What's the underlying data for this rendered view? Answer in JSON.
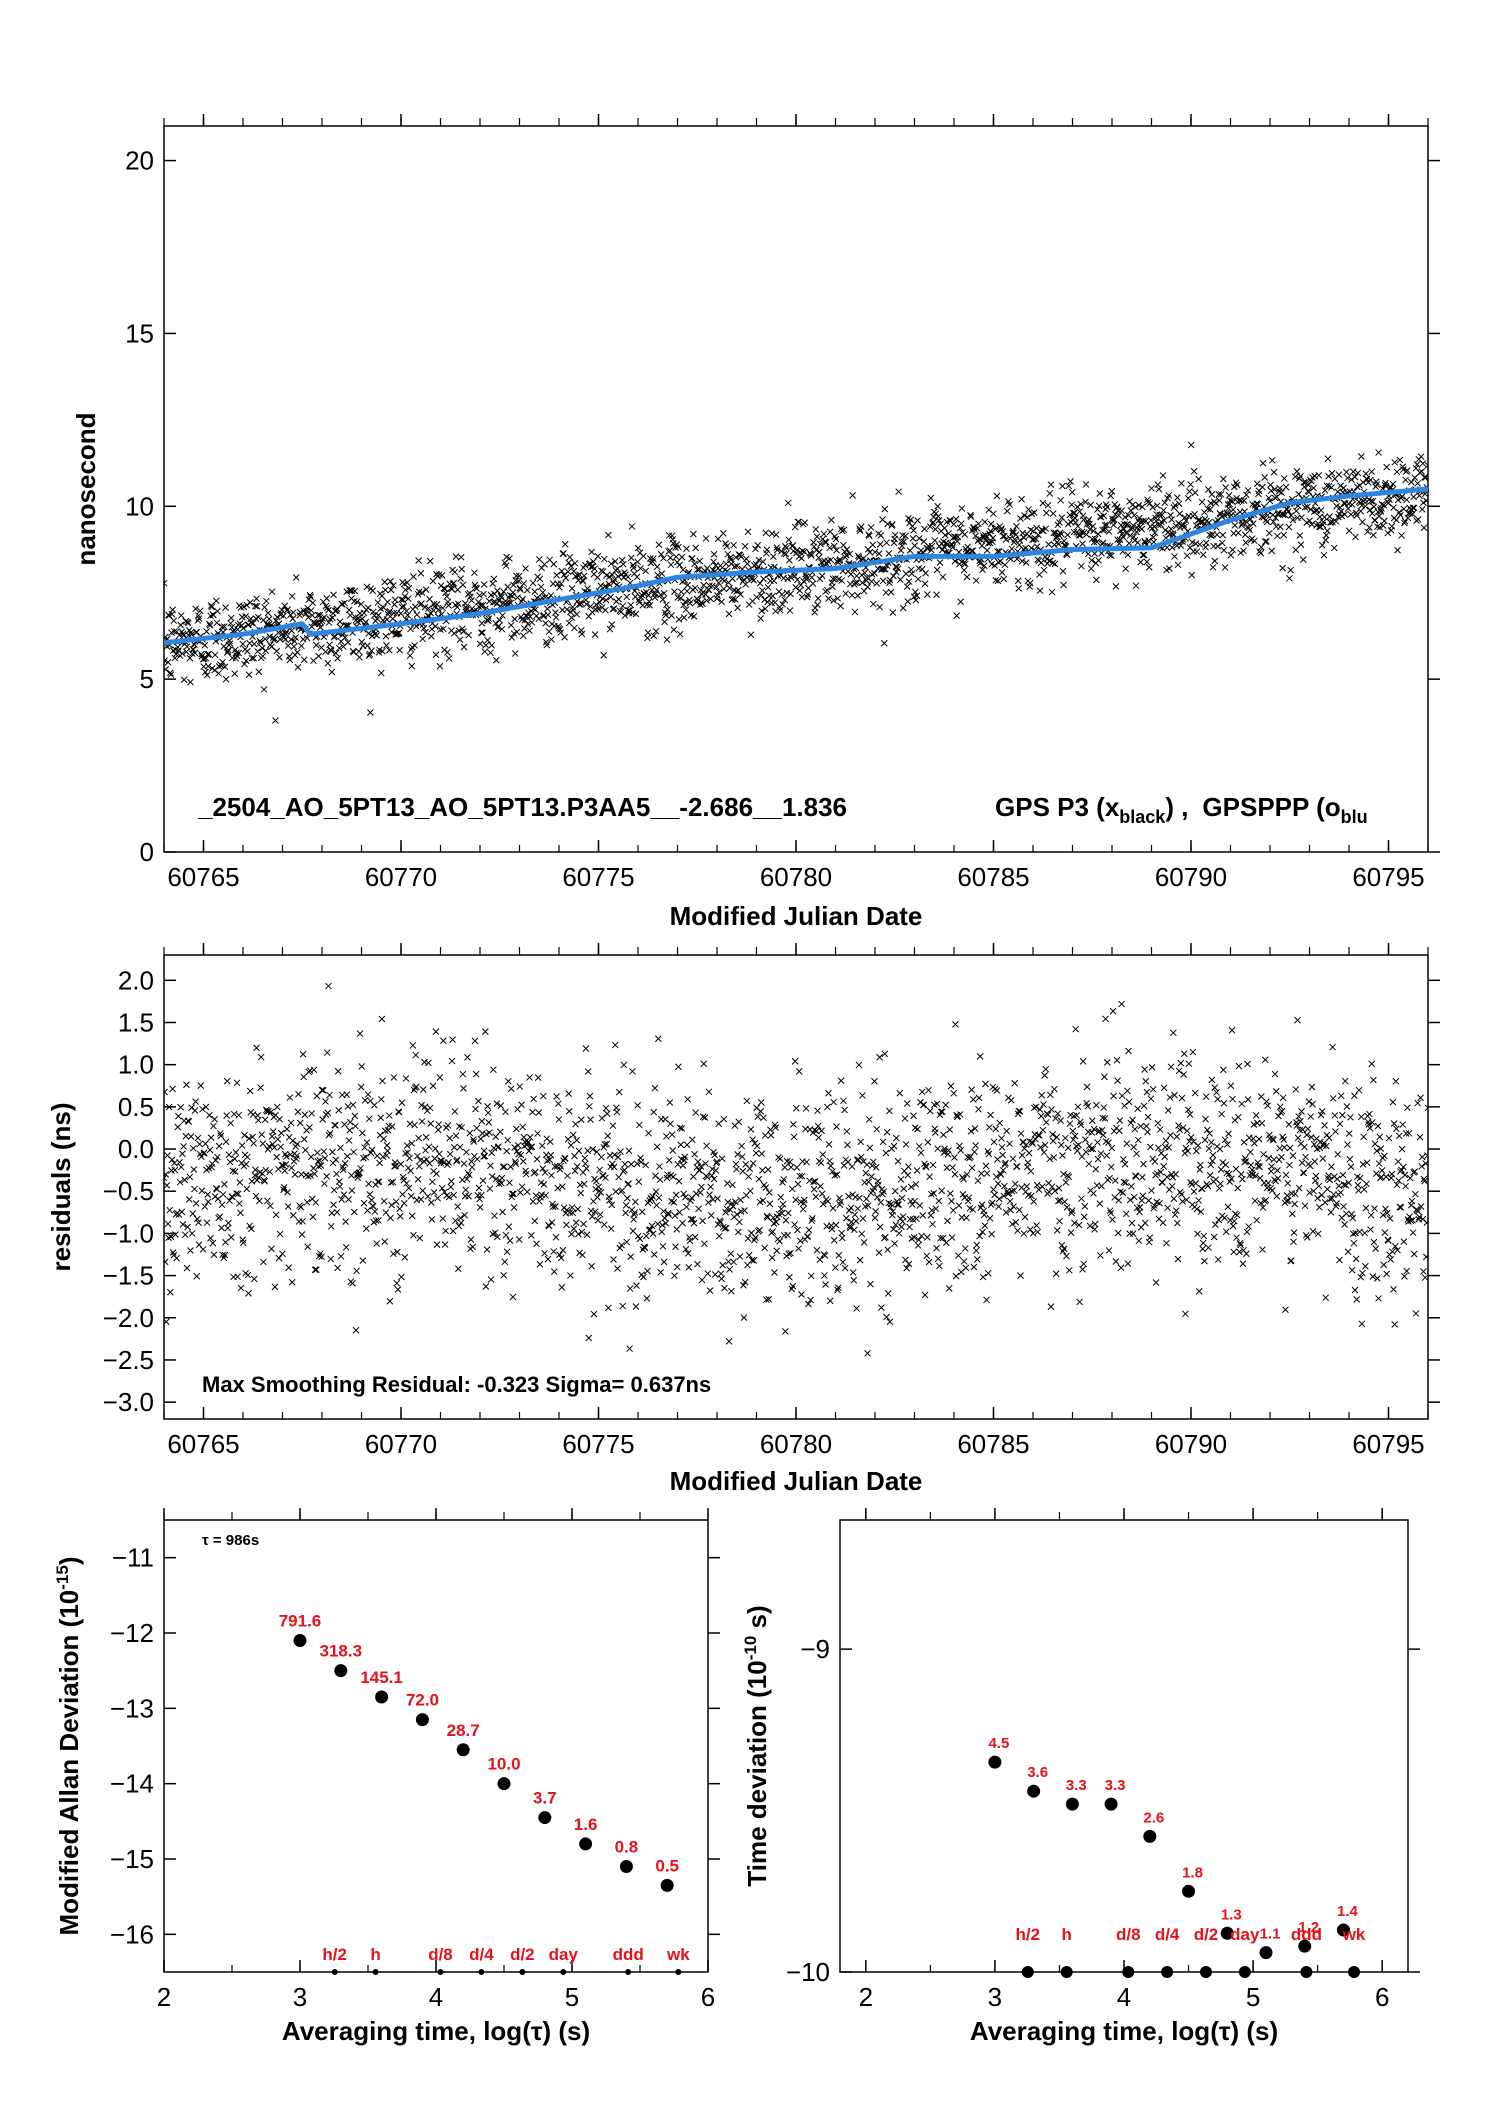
{
  "colors": {
    "scatter": "#000000",
    "smooth": "#2f86e0",
    "label": "#e8101a",
    "dot": "#000000"
  },
  "chart_data": [
    {
      "id": "top",
      "type": "scatter",
      "xlabel": "Modified Julian Date",
      "ylabel": "nanosecond",
      "xlim": [
        60764,
        60796
      ],
      "ylim": [
        0,
        21
      ],
      "xticks": [
        60765,
        60770,
        60775,
        60780,
        60785,
        60790,
        60795
      ],
      "yticks": [
        0,
        5,
        10,
        15,
        20
      ],
      "annotation": {
        "text": "_2504_AO_5PT13_AO_5PT13.P3AA5__-2.686__1.836",
        "legend_gps": "GPS P3 (x",
        "legend_gps_sub": "black",
        "legend_sep": ") ,",
        "legend_ppp": "GPSPPP (o",
        "legend_ppp_sub": "blu"
      },
      "series": [
        {
          "name": "GPS P3",
          "marker": "x",
          "trend": {
            "x": [
              60764,
              60796
            ],
            "y": [
              6.0,
              10.4
            ]
          },
          "noise_ns": 0.64,
          "approx_count": 2200
        },
        {
          "name": "GPSPPP",
          "style": "line",
          "x": [
            60764,
            60766,
            60767.5,
            60767.7,
            60770,
            60772,
            60774,
            60776,
            60777,
            60779,
            60781,
            60783,
            60785,
            60787,
            60789,
            60791,
            60792.5,
            60794,
            60796
          ],
          "y": [
            6.05,
            6.3,
            6.6,
            6.3,
            6.6,
            6.9,
            7.3,
            7.7,
            7.95,
            8.1,
            8.2,
            8.55,
            8.55,
            8.75,
            8.8,
            9.6,
            10.1,
            10.3,
            10.5
          ]
        }
      ]
    },
    {
      "id": "mid",
      "type": "scatter",
      "xlabel": "Modified Julian Date",
      "ylabel": "residuals (ns)",
      "xlim": [
        60764,
        60796
      ],
      "ylim": [
        -3.2,
        2.3
      ],
      "xticks": [
        60765,
        60770,
        60775,
        60780,
        60785,
        60790,
        60795
      ],
      "yticks": [
        -3.0,
        -2.5,
        -2.0,
        -1.5,
        -1.0,
        -0.5,
        0.0,
        0.5,
        1.0,
        1.5,
        2.0
      ],
      "ytick_labels": [
        "−3.0",
        "−2.5",
        "−2.0",
        "−1.5",
        "−1.0",
        "−0.5",
        "0.0",
        "0.5",
        "1.0",
        "1.5",
        "2.0"
      ],
      "annotation": {
        "text": "Max Smoothing Residual: -0.323  Sigma= 0.637ns"
      },
      "series": [
        {
          "name": "residuals",
          "marker": "x",
          "mean": -0.35,
          "sigma": 0.637,
          "approx_count": 2200
        }
      ]
    },
    {
      "id": "adev",
      "type": "scatter",
      "xlabel": "Averaging time, log(τ) (s)",
      "ylabel": "Modified Allan Deviation (10",
      "ylabel_sup": "-15",
      "ylabel_end": ")",
      "xlim": [
        2,
        6
      ],
      "ylim": [
        -16.5,
        -10.5
      ],
      "xticks": [
        2,
        3,
        4,
        5,
        6
      ],
      "yticks": [
        -16,
        -15,
        -14,
        -13,
        -12,
        -11
      ],
      "ytick_labels": [
        "−16",
        "−15",
        "−14",
        "−13",
        "−12",
        "−11"
      ],
      "tau_note": "τ = 986s",
      "points": [
        {
          "x": 3.0,
          "y": -12.1,
          "label": "791.6"
        },
        {
          "x": 3.3,
          "y": -12.5,
          "label": "318.3"
        },
        {
          "x": 3.6,
          "y": -12.85,
          "label": "145.1"
        },
        {
          "x": 3.9,
          "y": -13.15,
          "label": "72.0"
        },
        {
          "x": 4.2,
          "y": -13.55,
          "label": "28.7"
        },
        {
          "x": 4.5,
          "y": -14.0,
          "label": "10.0"
        },
        {
          "x": 4.8,
          "y": -14.45,
          "label": "3.7"
        },
        {
          "x": 5.1,
          "y": -14.8,
          "label": "1.6"
        },
        {
          "x": 5.4,
          "y": -15.1,
          "label": "0.8"
        },
        {
          "x": 5.7,
          "y": -15.35,
          "label": "0.5"
        }
      ],
      "markers": [
        {
          "x": 3.255,
          "label": "h/2"
        },
        {
          "x": 3.556,
          "label": "h"
        },
        {
          "x": 4.033,
          "label": "d/8"
        },
        {
          "x": 4.334,
          "label": "d/4"
        },
        {
          "x": 4.635,
          "label": "d/2"
        },
        {
          "x": 4.936,
          "label": "day"
        },
        {
          "x": 5.413,
          "label": "ddd"
        },
        {
          "x": 5.782,
          "label": "wk"
        }
      ]
    },
    {
      "id": "tdev",
      "type": "scatter",
      "xlabel": "Averaging time, log(τ) (s)",
      "ylabel": "Time deviation (10",
      "ylabel_sup": "-10",
      "ylabel_end": " s)",
      "xlim": [
        1.8,
        6.2
      ],
      "ylim": [
        -10.0,
        -8.6
      ],
      "xticks": [
        2,
        3,
        4,
        5,
        6
      ],
      "yticks": [
        -10,
        -9
      ],
      "ytick_labels": [
        "−10",
        "−9"
      ],
      "points": [
        {
          "x": 3.0,
          "y": -9.35,
          "label": "4.5"
        },
        {
          "x": 3.3,
          "y": -9.44,
          "label": "3.6"
        },
        {
          "x": 3.6,
          "y": -9.48,
          "label": "3.3"
        },
        {
          "x": 3.9,
          "y": -9.48,
          "label": "3.3"
        },
        {
          "x": 4.2,
          "y": -9.58,
          "label": "2.6"
        },
        {
          "x": 4.5,
          "y": -9.75,
          "label": "1.8"
        },
        {
          "x": 4.8,
          "y": -9.88,
          "label": "1.3"
        },
        {
          "x": 5.1,
          "y": -9.94,
          "label": "1.1"
        },
        {
          "x": 5.4,
          "y": -9.92,
          "label": "1.2"
        },
        {
          "x": 5.7,
          "y": -9.87,
          "label": "1.4"
        }
      ],
      "markers": [
        {
          "x": 3.255,
          "label": "h/2"
        },
        {
          "x": 3.556,
          "label": "h"
        },
        {
          "x": 4.033,
          "label": "d/8"
        },
        {
          "x": 4.334,
          "label": "d/4"
        },
        {
          "x": 4.635,
          "label": "d/2"
        },
        {
          "x": 4.936,
          "label": "day"
        },
        {
          "x": 5.413,
          "label": "ddd"
        },
        {
          "x": 5.782,
          "label": "wk"
        }
      ]
    }
  ]
}
